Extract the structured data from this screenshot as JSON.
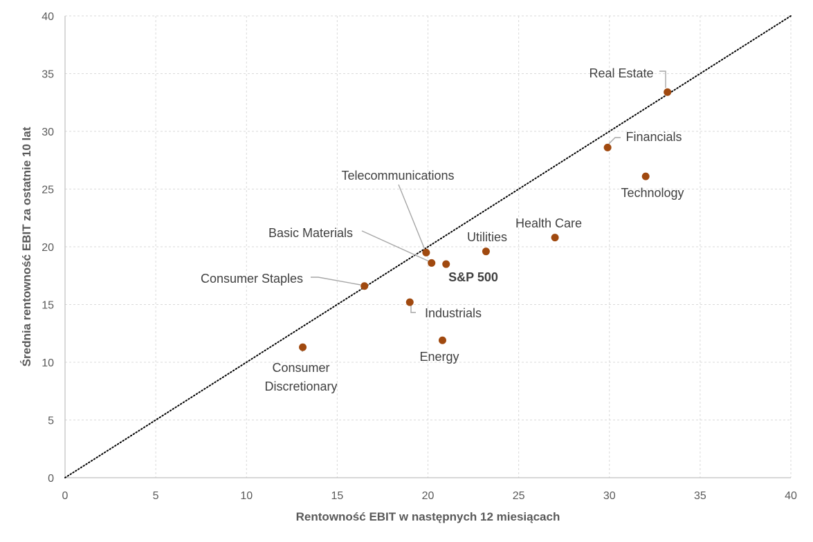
{
  "chart_data": {
    "type": "scatter",
    "title": "",
    "xlabel": "Rentowność EBIT w następnych 12 miesiącach",
    "ylabel": "Średnia rentowność EBIT za ostatnie 10 lat",
    "xlim": [
      0,
      40
    ],
    "ylim": [
      0,
      40
    ],
    "xticks": [
      "0",
      "5",
      "10",
      "15",
      "20",
      "25",
      "30",
      "35",
      "40"
    ],
    "yticks": [
      "0",
      "5",
      "10",
      "15",
      "20",
      "25",
      "30",
      "35",
      "40"
    ],
    "grid": true,
    "reference_line": {
      "style": "dotted",
      "from": [
        0,
        0
      ],
      "to": [
        40,
        40
      ]
    },
    "points": [
      {
        "name": "Real Estate",
        "x": 33.2,
        "y": 33.4,
        "bold": false
      },
      {
        "name": "Financials",
        "x": 29.9,
        "y": 28.6,
        "bold": false
      },
      {
        "name": "Technology",
        "x": 32.0,
        "y": 26.1,
        "bold": false
      },
      {
        "name": "Health Care",
        "x": 27.0,
        "y": 20.8,
        "bold": false
      },
      {
        "name": "Utilities",
        "x": 23.2,
        "y": 19.6,
        "bold": false
      },
      {
        "name": "Telecommunications",
        "x": 19.9,
        "y": 19.5,
        "bold": false
      },
      {
        "name": "Basic Materials",
        "x": 20.2,
        "y": 18.6,
        "bold": false
      },
      {
        "name": "S&P 500",
        "x": 21.0,
        "y": 18.5,
        "bold": true
      },
      {
        "name": "Consumer Staples",
        "x": 16.5,
        "y": 16.6,
        "bold": false
      },
      {
        "name": "Industrials",
        "x": 19.0,
        "y": 15.2,
        "bold": false
      },
      {
        "name": "Energy",
        "x": 20.8,
        "y": 11.9,
        "bold": false
      },
      {
        "name": "Consumer Discretionary",
        "x": 13.1,
        "y": 11.3,
        "bold": false,
        "lines": [
          "Consumer",
          "Discretionary"
        ]
      }
    ]
  }
}
